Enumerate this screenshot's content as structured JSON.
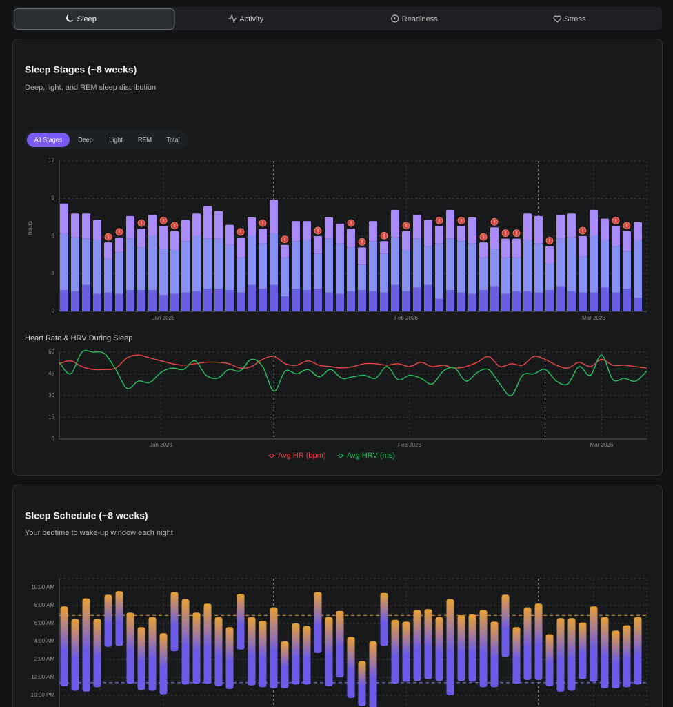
{
  "tabs": [
    "Sleep",
    "Activity",
    "Readiness",
    "Stress"
  ],
  "active_tab": 0,
  "chart_data": [
    {
      "type": "stacked_bar",
      "title": "Sleep Stages (~8 weeks)",
      "subtitle": "Deep, light, and REM sleep distribution",
      "filters": [
        "All Stages",
        "Deep",
        "Light",
        "REM",
        "Total"
      ],
      "active_filter": 0,
      "ylabel": "hours",
      "ylim": [
        0,
        12
      ],
      "yticks": [
        0,
        3,
        6,
        9,
        12
      ],
      "grid": true,
      "categories": [
        null,
        null,
        null,
        null,
        null,
        null,
        null,
        null,
        null,
        "Jan 2026",
        null,
        null,
        null,
        null,
        null,
        null,
        null,
        null,
        null,
        null,
        null,
        null,
        null,
        null,
        null,
        null,
        null,
        null,
        null,
        null,
        null,
        "Feb 2026",
        null,
        null,
        null,
        null,
        null,
        null,
        null,
        null,
        null,
        null,
        null,
        null,
        null,
        null,
        null,
        null,
        "Mar 2026",
        null,
        null,
        null,
        null
      ],
      "reference_lines": [
        19,
        43
      ],
      "series": [
        {
          "color": "#6a60e6",
          "values": [
            1.7,
            1.6,
            2.1,
            1.4,
            1.5,
            1.4,
            1.7,
            1.7,
            1.7,
            1.3,
            1.4,
            1.5,
            1.6,
            1.8,
            1.8,
            1.7,
            1.5,
            2.1,
            1.8,
            2.1,
            1.2,
            1.8,
            1.7,
            1.8,
            1.5,
            1.4,
            1.6,
            1.7,
            1.6,
            1.5,
            2.1,
            1.6,
            1.9,
            2.1,
            1.0,
            1.7,
            1.5,
            1.4,
            1.7,
            2.0,
            1.4,
            1.6,
            1.6,
            1.5,
            1.7,
            2.0,
            1.6,
            1.5,
            1.5,
            1.9,
            1.5,
            1.8,
            1.1
          ]
        },
        {
          "color": "#8790f2",
          "values": [
            4.5,
            4.3,
            3.7,
            4.3,
            2.7,
            3.3,
            4.1,
            3.4,
            4.3,
            3.7,
            3.5,
            4.1,
            4.4,
            4.0,
            4.0,
            3.6,
            2.8,
            3.9,
            3.6,
            4.1,
            3.1,
            3.8,
            4.0,
            2.8,
            4.3,
            4.0,
            3.5,
            2.0,
            4.0,
            3.1,
            3.8,
            3.3,
            3.9,
            3.1,
            4.4,
            4.1,
            4.1,
            4.0,
            2.6,
            3.0,
            2.9,
            2.7,
            4.1,
            3.9,
            2.1,
            3.8,
            4.3,
            2.9,
            4.5,
            3.8,
            3.7,
            3.0,
            4.6
          ]
        },
        {
          "color": "#a98af6",
          "values": [
            2.4,
            1.9,
            2.0,
            1.6,
            1.3,
            1.2,
            1.8,
            1.5,
            1.7,
            1.8,
            1.5,
            1.7,
            1.8,
            2.6,
            2.2,
            1.6,
            1.6,
            1.5,
            1.2,
            2.7,
            1.0,
            1.6,
            1.5,
            1.4,
            1.7,
            1.6,
            1.5,
            1.4,
            1.6,
            1.0,
            2.2,
            1.5,
            1.9,
            2.1,
            1.4,
            2.3,
            1.2,
            2.1,
            1.2,
            1.7,
            1.5,
            1.5,
            2.1,
            2.2,
            1.4,
            1.9,
            1.9,
            1.6,
            2.1,
            1.7,
            1.6,
            1.6,
            1.4
          ]
        }
      ],
      "alerts": {
        "label": "!",
        "color": "#d9453a",
        "indices": [
          4,
          5,
          7,
          9,
          10,
          16,
          18,
          20,
          23,
          26,
          27,
          29,
          31,
          34,
          36,
          38,
          39,
          40,
          41,
          44,
          47,
          50,
          51
        ]
      }
    },
    {
      "type": "line",
      "title": "Heart Rate & HRV During Sleep",
      "ylim": [
        0,
        60
      ],
      "yticks": [
        0,
        15,
        30,
        45,
        60
      ],
      "grid": true,
      "categories": [
        null,
        null,
        null,
        null,
        null,
        null,
        null,
        null,
        null,
        "Jan 2026",
        null,
        null,
        null,
        null,
        null,
        null,
        null,
        null,
        null,
        null,
        null,
        null,
        null,
        null,
        null,
        null,
        null,
        null,
        null,
        null,
        null,
        "Feb 2026",
        null,
        null,
        null,
        null,
        null,
        null,
        null,
        null,
        null,
        null,
        null,
        null,
        null,
        null,
        null,
        null,
        "Mar 2026",
        null,
        null,
        null,
        null
      ],
      "reference_lines": [
        19,
        43
      ],
      "series": [
        {
          "name": "Avg HR (bpm)",
          "color": "#ef4444",
          "values": [
            52,
            54,
            50,
            48,
            48,
            49,
            56,
            58,
            56,
            54,
            52,
            51,
            52,
            53,
            53,
            52,
            49,
            50,
            55,
            57,
            52,
            51,
            54,
            51,
            50,
            49,
            50,
            52,
            52,
            51,
            52,
            50,
            53,
            50,
            51,
            49,
            50,
            53,
            57,
            50,
            52,
            51,
            57,
            55,
            51,
            49,
            53,
            50,
            55,
            51,
            51,
            50,
            49
          ]
        },
        {
          "name": "Avg HRV (ms)",
          "color": "#22c55e",
          "values": [
            53,
            45,
            60,
            60,
            59,
            48,
            35,
            40,
            39,
            46,
            49,
            48,
            54,
            44,
            42,
            48,
            47,
            55,
            50,
            33,
            47,
            45,
            48,
            43,
            48,
            42,
            43,
            44,
            42,
            50,
            41,
            44,
            42,
            38,
            47,
            49,
            40,
            46,
            48,
            38,
            30,
            44,
            45,
            48,
            40,
            38,
            50,
            44,
            58,
            41,
            42,
            40,
            47
          ]
        }
      ]
    },
    {
      "type": "range_bar",
      "title": "Sleep Schedule (~8 weeks)",
      "subtitle": "Your bedtime to wake-up window each night",
      "ylim": [
        -4,
        11
      ],
      "yticks": [
        {
          "value": 10,
          "label": "10:00 AM"
        },
        {
          "value": 8,
          "label": "8:00 AM"
        },
        {
          "value": 6,
          "label": "6:00 AM"
        },
        {
          "value": 4,
          "label": "4:00 AM"
        },
        {
          "value": 2,
          "label": "2:00 AM"
        },
        {
          "value": 0,
          "label": "12:00 AM"
        },
        {
          "value": -2,
          "label": "10:00 PM"
        }
      ],
      "grid": true,
      "x_gridlines": [
        9,
        31,
        48
      ],
      "reference_lines": [
        19,
        43
      ],
      "colors": [
        "#6d5ce8",
        "#e8a033"
      ],
      "y_reference_lines": [
        {
          "value": 6.9,
          "color": "#c98a2a"
        },
        {
          "value": -0.6,
          "color": "#7f74d8"
        }
      ],
      "start": [
        -1.0,
        -1.5,
        -1.6,
        -1.1,
        3.4,
        3.5,
        -0.7,
        -1.4,
        -1.5,
        -1.9,
        2.9,
        -0.8,
        -0.7,
        -0.7,
        -1.0,
        -1.3,
        3.1,
        -0.9,
        -1.1,
        -1.2,
        -1.2,
        -0.8,
        -0.8,
        2.7,
        -1.0,
        0.0,
        -2.3,
        -3.2,
        -3.4,
        3.5,
        -0.7,
        -0.5,
        -0.4,
        -0.2,
        -0.4,
        -2.0,
        -0.4,
        -0.5,
        -1.1,
        -1.1,
        2.3,
        -0.7,
        -0.3,
        -0.3,
        -1.0,
        -1.6,
        -1.5,
        -0.2,
        -0.5,
        -1.2,
        -1.2,
        -1.1,
        -0.8
      ],
      "end": [
        7.9,
        6.5,
        8.8,
        6.5,
        9.2,
        9.6,
        7.2,
        5.6,
        6.7,
        4.9,
        9.5,
        8.7,
        7.2,
        8.2,
        6.7,
        5.6,
        9.3,
        6.7,
        6.3,
        7.8,
        4.0,
        6.0,
        5.7,
        9.5,
        6.7,
        7.4,
        4.5,
        1.8,
        4.0,
        9.4,
        6.4,
        6.2,
        7.5,
        7.6,
        6.7,
        8.7,
        6.9,
        7.0,
        7.5,
        6.2,
        9.2,
        5.6,
        7.8,
        8.2,
        4.8,
        6.6,
        6.6,
        6.1,
        7.9,
        6.7,
        5.2,
        5.8,
        6.7
      ]
    }
  ]
}
